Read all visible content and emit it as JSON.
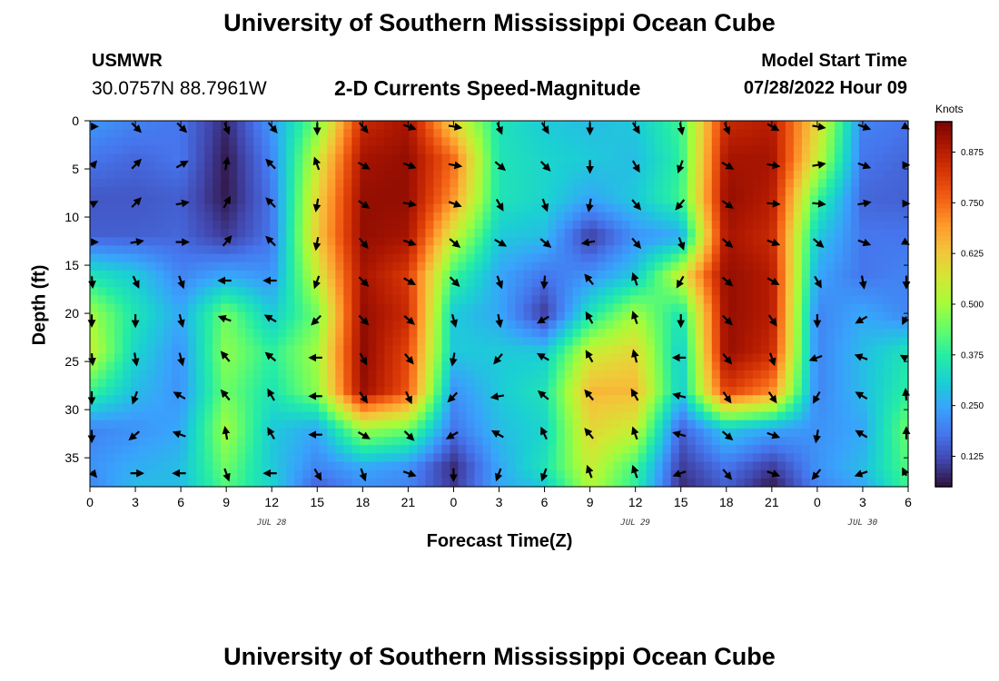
{
  "header": {
    "title": "University of Southern Mississippi Ocean Cube",
    "station": "USMWR",
    "coordinates": "30.0757N  88.7961W",
    "subtitle": "2-D Currents Speed-Magnitude",
    "model_start_label": "Model Start Time",
    "model_start_value": "07/28/2022 Hour 09"
  },
  "footer": {
    "title": "University of Southern Mississippi Ocean Cube"
  },
  "chart_data": {
    "type": "heatmap",
    "title": "2-D Currents Speed-Magnitude",
    "xlabel": "Forecast Time(Z)",
    "ylabel": "Depth (ft)",
    "x_ticks": [
      "0",
      "3",
      "6",
      "9",
      "12",
      "15",
      "18",
      "21",
      "0",
      "3",
      "6",
      "9",
      "12",
      "15",
      "18",
      "21",
      "0",
      "3",
      "6"
    ],
    "y_ticks": [
      "0",
      "5",
      "10",
      "15",
      "20",
      "25",
      "30",
      "35"
    ],
    "ylim": [
      0,
      38
    ],
    "x_hours": [
      0,
      54
    ],
    "day_labels": [
      {
        "label": "JUL 28",
        "hour": 12
      },
      {
        "label": "JUL 29",
        "hour": 36
      },
      {
        "label": "JUL 30",
        "hour": 51
      }
    ],
    "colorbar": {
      "unit": "Knots",
      "ticks": [
        "0.125",
        "0.250",
        "0.375",
        "0.500",
        "0.625",
        "0.750",
        "0.875"
      ],
      "range": [
        0.05,
        0.95
      ],
      "colors": [
        "#30123b",
        "#4145ab",
        "#4675ed",
        "#39a2fc",
        "#1bcfd4",
        "#24eca6",
        "#61fc6c",
        "#a4fc3b",
        "#d1e834",
        "#f3c63a",
        "#fe9b2d",
        "#f36315",
        "#d93806",
        "#b11901",
        "#7a0403"
      ]
    },
    "speed_grid_note": "speed in knots; rows are depth (ft), columns are forecast hour",
    "speed_grid": {
      "depths": [
        0,
        4,
        8,
        12,
        16,
        20,
        24,
        28,
        32,
        36,
        38
      ],
      "hours": [
        0,
        3,
        6,
        9,
        12,
        15,
        18,
        21,
        24,
        27,
        30,
        33,
        36,
        39,
        42,
        45,
        48,
        51,
        54
      ],
      "values": [
        [
          0.23,
          0.2,
          0.18,
          0.08,
          0.23,
          0.45,
          0.85,
          0.9,
          0.6,
          0.35,
          0.3,
          0.28,
          0.3,
          0.4,
          0.85,
          0.88,
          0.6,
          0.2,
          0.18
        ],
        [
          0.18,
          0.16,
          0.18,
          0.06,
          0.2,
          0.55,
          0.9,
          0.92,
          0.75,
          0.35,
          0.32,
          0.3,
          0.28,
          0.38,
          0.9,
          0.9,
          0.55,
          0.18,
          0.16
        ],
        [
          0.14,
          0.14,
          0.15,
          0.06,
          0.18,
          0.6,
          0.92,
          0.92,
          0.7,
          0.35,
          0.32,
          0.25,
          0.3,
          0.4,
          0.92,
          0.88,
          0.4,
          0.16,
          0.15
        ],
        [
          0.15,
          0.15,
          0.16,
          0.1,
          0.18,
          0.62,
          0.92,
          0.9,
          0.55,
          0.3,
          0.28,
          0.1,
          0.22,
          0.25,
          0.9,
          0.85,
          0.3,
          0.18,
          0.18
        ],
        [
          0.35,
          0.3,
          0.2,
          0.25,
          0.22,
          0.55,
          0.9,
          0.82,
          0.4,
          0.25,
          0.18,
          0.22,
          0.3,
          0.55,
          0.92,
          0.88,
          0.25,
          0.18,
          0.2
        ],
        [
          0.5,
          0.35,
          0.25,
          0.45,
          0.3,
          0.45,
          0.92,
          0.85,
          0.3,
          0.25,
          0.1,
          0.35,
          0.5,
          0.35,
          0.92,
          0.88,
          0.2,
          0.25,
          0.2
        ],
        [
          0.55,
          0.32,
          0.22,
          0.48,
          0.38,
          0.5,
          0.93,
          0.8,
          0.3,
          0.3,
          0.3,
          0.55,
          0.6,
          0.3,
          0.92,
          0.85,
          0.2,
          0.28,
          0.35
        ],
        [
          0.4,
          0.28,
          0.22,
          0.45,
          0.35,
          0.48,
          0.92,
          0.78,
          0.22,
          0.3,
          0.35,
          0.65,
          0.65,
          0.3,
          0.82,
          0.72,
          0.2,
          0.28,
          0.38
        ],
        [
          0.2,
          0.22,
          0.25,
          0.5,
          0.3,
          0.25,
          0.5,
          0.45,
          0.18,
          0.28,
          0.32,
          0.6,
          0.55,
          0.15,
          0.3,
          0.25,
          0.22,
          0.25,
          0.45
        ],
        [
          0.22,
          0.26,
          0.28,
          0.45,
          0.3,
          0.2,
          0.25,
          0.22,
          0.08,
          0.25,
          0.35,
          0.55,
          0.4,
          0.1,
          0.18,
          0.1,
          0.22,
          0.28,
          0.42
        ],
        [
          0.2,
          0.28,
          0.28,
          0.42,
          0.32,
          0.15,
          0.22,
          0.2,
          0.1,
          0.25,
          0.3,
          0.52,
          0.38,
          0.08,
          0.15,
          0.06,
          0.2,
          0.25,
          0.4
        ]
      ]
    },
    "arrows_note": "current direction in compass degrees (toward), rows at listed depths, columns at listed hours",
    "arrows": {
      "depths": [
        0,
        4,
        8,
        12,
        16,
        20,
        24,
        28,
        32,
        36
      ],
      "hours": [
        0,
        3,
        6,
        9,
        12,
        15,
        18,
        21,
        24,
        27,
        30,
        33,
        36,
        39,
        42,
        45,
        48,
        51,
        54
      ],
      "dirs": [
        [
          90,
          135,
          135,
          160,
          140,
          180,
          140,
          110,
          100,
          160,
          150,
          180,
          150,
          170,
          160,
          120,
          100,
          110,
          100
        ],
        [
          70,
          45,
          60,
          10,
          315,
          340,
          120,
          110,
          100,
          130,
          135,
          180,
          150,
          200,
          120,
          100,
          80,
          110,
          90
        ],
        [
          80,
          45,
          80,
          30,
          315,
          190,
          125,
          100,
          110,
          150,
          160,
          190,
          140,
          220,
          125,
          95,
          95,
          80,
          90
        ],
        [
          90,
          80,
          90,
          40,
          315,
          190,
          140,
          110,
          130,
          120,
          130,
          260,
          140,
          160,
          130,
          110,
          130,
          110,
          100
        ],
        [
          150,
          155,
          160,
          270,
          270,
          200,
          135,
          120,
          135,
          160,
          185,
          320,
          340,
          210,
          130,
          120,
          150,
          170,
          185
        ],
        [
          200,
          180,
          165,
          290,
          300,
          225,
          135,
          130,
          165,
          170,
          240,
          330,
          340,
          180,
          135,
          145,
          180,
          240,
          240
        ],
        [
          150,
          170,
          165,
          320,
          310,
          270,
          150,
          140,
          190,
          220,
          300,
          330,
          345,
          270,
          140,
          160,
          250,
          290,
          280
        ],
        [
          170,
          200,
          300,
          320,
          330,
          270,
          145,
          155,
          225,
          260,
          310,
          320,
          330,
          285,
          145,
          145,
          210,
          300,
          330
        ],
        [
          200,
          230,
          290,
          350,
          330,
          270,
          120,
          135,
          240,
          300,
          335,
          320,
          340,
          285,
          130,
          110,
          190,
          300,
          340
        ],
        [
          110,
          90,
          270,
          160,
          270,
          150,
          160,
          110,
          180,
          200,
          200,
          340,
          340,
          250,
          140,
          110,
          220,
          250,
          300
        ]
      ]
    }
  }
}
